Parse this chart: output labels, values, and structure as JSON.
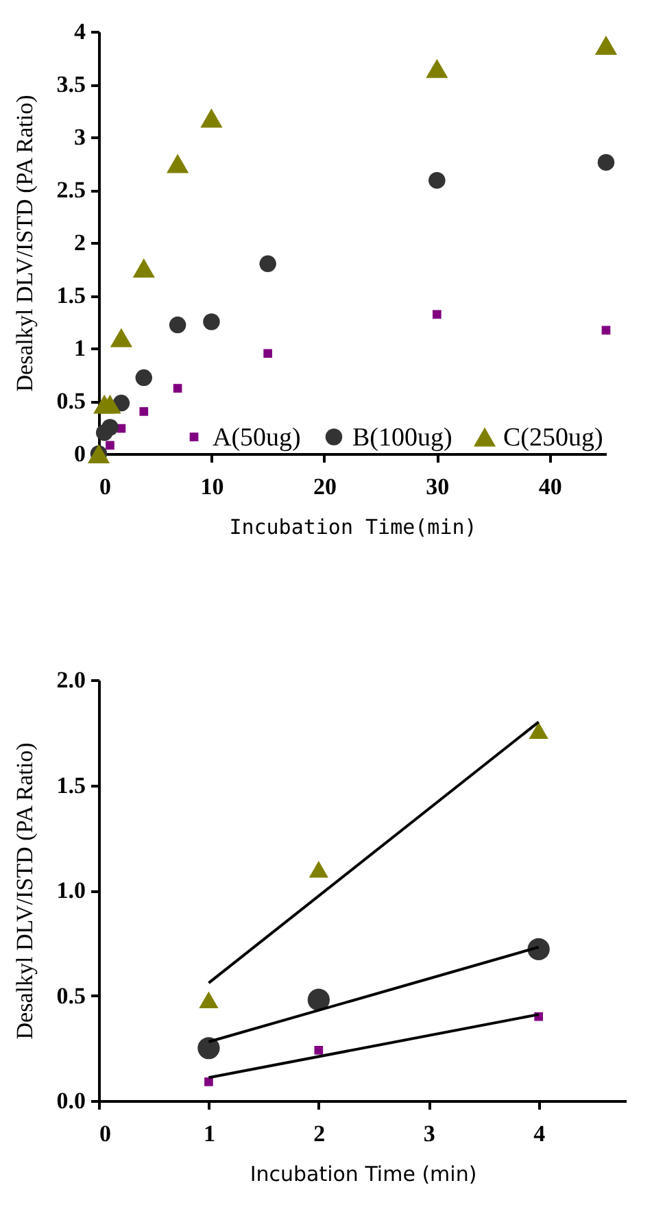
{
  "chart_data": [
    {
      "type": "scatter",
      "xlabel": "Incubation Time(min)",
      "ylabel": "Desalkyl DLV/ISTD (PA Ratio)",
      "xlim": [
        0,
        45
      ],
      "ylim": [
        0,
        4
      ],
      "xticks": [
        0,
        10,
        20,
        30,
        40
      ],
      "yticks": [
        0,
        0.5,
        1,
        1.5,
        2,
        2.5,
        3,
        3.5,
        4
      ],
      "grid": false,
      "legend": "bottom right",
      "series": [
        {
          "name": "A(50ug)",
          "color": "#800080",
          "marker": "square",
          "x": [
            1,
            2,
            4,
            7,
            15,
            30,
            45
          ],
          "values": [
            0.08,
            0.24,
            0.4,
            0.62,
            0.95,
            1.32,
            1.17
          ]
        },
        {
          "name": "B(100ug)",
          "color": "#333333",
          "marker": "circle",
          "x": [
            0,
            0.5,
            1,
            2,
            4,
            7,
            10,
            15,
            30,
            45
          ],
          "values": [
            0,
            0.2,
            0.25,
            0.48,
            0.72,
            1.22,
            1.25,
            1.8,
            2.59,
            2.76
          ]
        },
        {
          "name": "C(250ug)",
          "color": "#808000",
          "marker": "triangle",
          "x": [
            0,
            0.5,
            1,
            2,
            4,
            7,
            10,
            30,
            45
          ],
          "values": [
            0,
            0.47,
            0.47,
            1.1,
            1.76,
            2.75,
            3.18,
            3.65,
            3.87
          ]
        }
      ]
    },
    {
      "type": "scatter",
      "xlabel": "Incubation Time (min)",
      "ylabel": "Desalkyl DLV/ISTD (PA Ratio)",
      "xlim": [
        0,
        4.8
      ],
      "ylim": [
        0,
        2
      ],
      "xticks": [
        0,
        1,
        2,
        3,
        4
      ],
      "yticks": [
        {
          "value": 0,
          "label": "0.0"
        },
        {
          "value": 0.5,
          "label": "0.5"
        },
        {
          "value": 1,
          "label": "1.0"
        },
        {
          "value": 1.5,
          "label": "1.5"
        },
        {
          "value": 2,
          "label": "2.0"
        }
      ],
      "grid": false,
      "legend": false,
      "series": [
        {
          "color": "#800080",
          "marker": "square",
          "x": [
            1,
            2,
            4
          ],
          "values": [
            0.09,
            0.24,
            0.4
          ]
        },
        {
          "color": "#333333",
          "marker": "circle",
          "x": [
            1,
            2,
            4
          ],
          "values": [
            0.25,
            0.48,
            0.72
          ]
        },
        {
          "color": "#808000",
          "marker": "triangle",
          "x": [
            1,
            2,
            4
          ],
          "values": [
            0.48,
            1.1,
            1.76
          ]
        },
        {
          "type": "line",
          "color": "#000000",
          "marker": "none",
          "x": [
            1,
            4
          ],
          "values": [
            0.11,
            0.41
          ]
        },
        {
          "type": "line",
          "color": "#000000",
          "marker": "none",
          "x": [
            1,
            4
          ],
          "values": [
            0.28,
            0.73
          ]
        },
        {
          "type": "line",
          "color": "#000000",
          "marker": "none",
          "x": [
            1,
            4
          ],
          "values": [
            0.56,
            1.8
          ]
        }
      ]
    }
  ]
}
